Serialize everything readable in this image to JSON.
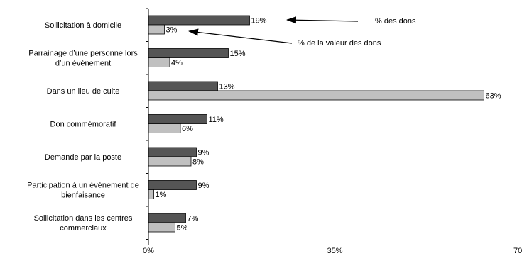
{
  "chart_data": {
    "type": "bar",
    "orientation": "horizontal",
    "categories": [
      [
        "Sollicitation à domicile"
      ],
      [
        "Parrainage d’une personne lors",
        "d’un événement"
      ],
      [
        "Dans un lieu de culte"
      ],
      [
        "Don commémoratif"
      ],
      [
        "Demande par la poste"
      ],
      [
        "Participation à un événement de",
        "bienfaisance"
      ],
      [
        "Sollicitation dans les centres",
        "commerciaux"
      ]
    ],
    "series": [
      {
        "name": "% des dons",
        "values": [
          19,
          15,
          13,
          11,
          9,
          9,
          7
        ],
        "color": "#555555"
      },
      {
        "name": "% de la valeur des dons",
        "values": [
          3,
          4,
          63,
          6,
          8,
          1,
          5
        ],
        "color": "#c0c0c0"
      }
    ],
    "value_labels": [
      [
        "19%",
        "15%",
        "13%",
        "11%",
        "9%",
        "9%",
        "7%"
      ],
      [
        "3%",
        "4%",
        "63%",
        "6%",
        "8%",
        "1%",
        "5%"
      ]
    ],
    "xlim": [
      0,
      70
    ],
    "x_ticks": [
      0,
      35,
      70
    ],
    "x_tick_labels": [
      "0%",
      "35%",
      "70%"
    ],
    "grid": false,
    "legend": "annotation arrows pointing to the first category bars",
    "title": "",
    "xlabel": "",
    "ylabel": ""
  }
}
